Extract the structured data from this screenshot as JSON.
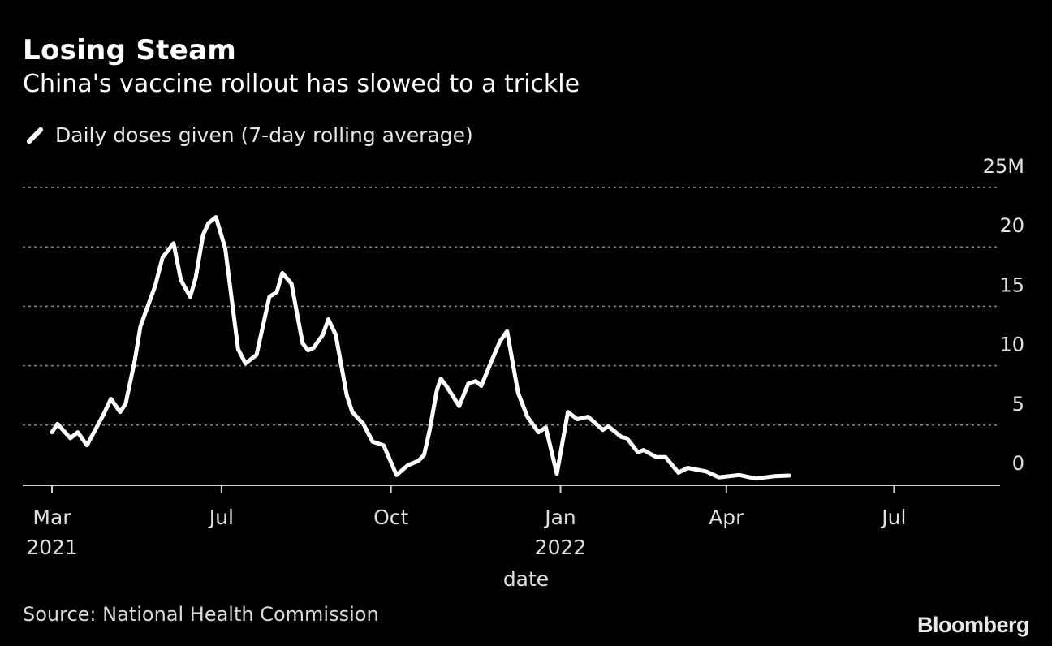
{
  "title": "Losing Steam",
  "subtitle": "China's vaccine rollout has slowed to a trickle",
  "source": "Source: National Health Commission",
  "logo": "Bloomberg",
  "colors": {
    "background": "#000000",
    "line": "#ffffff",
    "grid": "#888888"
  },
  "chart_data": {
    "type": "line",
    "title": "Losing Steam",
    "xlabel": "date",
    "ylabel": "",
    "x_units": "days since 2021-03-01",
    "ylim": [
      0,
      25
    ],
    "y_ticks": [
      {
        "value": 0,
        "label": "0"
      },
      {
        "value": 5,
        "label": "5"
      },
      {
        "value": 10,
        "label": "10"
      },
      {
        "value": 15,
        "label": "15"
      },
      {
        "value": 20,
        "label": "20"
      },
      {
        "value": 25,
        "label": "25M"
      }
    ],
    "x_ticks": [
      {
        "day": 30,
        "label": "Mar",
        "sublabel": "2021"
      },
      {
        "day": 122,
        "label": "Jul",
        "sublabel": ""
      },
      {
        "day": 214,
        "label": "Oct",
        "sublabel": ""
      },
      {
        "day": 306,
        "label": "Jan",
        "sublabel": "2022"
      },
      {
        "day": 396,
        "label": "Apr",
        "sublabel": ""
      },
      {
        "day": 487,
        "label": "Jul",
        "sublabel": ""
      }
    ],
    "grid": true,
    "legend_position": "top-left",
    "series": [
      {
        "name": "Daily doses given (7-day rolling average)",
        "x": [
          30,
          33,
          40,
          44,
          49,
          58,
          62,
          67,
          70,
          75,
          78,
          82,
          86,
          90,
          96,
          100,
          105,
          108,
          112,
          115,
          119,
          124,
          131,
          135,
          141,
          148,
          152,
          155,
          160,
          166,
          169,
          172,
          177,
          180,
          184,
          190,
          193,
          199,
          204,
          210,
          217,
          223,
          229,
          232,
          235,
          239,
          241,
          244,
          251,
          256,
          260,
          263,
          268,
          273,
          277,
          283,
          288,
          294,
          298,
          304,
          310,
          315,
          321,
          329,
          332,
          339,
          342,
          348,
          351,
          358,
          363,
          370,
          375,
          385,
          392,
          403,
          412,
          422,
          430
        ],
        "y": [
          4.4,
          5.1,
          3.9,
          4.4,
          3.3,
          5.9,
          7.2,
          6.1,
          6.8,
          10.5,
          13.3,
          15.0,
          16.7,
          19.1,
          20.3,
          17.2,
          15.8,
          17.4,
          21.0,
          22.0,
          22.5,
          19.9,
          11.4,
          10.2,
          10.9,
          15.8,
          16.2,
          17.8,
          16.9,
          11.9,
          11.3,
          11.5,
          12.6,
          13.9,
          12.6,
          7.5,
          6.1,
          5.1,
          3.6,
          3.3,
          0.8,
          1.6,
          2.0,
          2.5,
          4.6,
          8.0,
          8.9,
          8.3,
          6.6,
          8.5,
          8.7,
          8.3,
          10.2,
          12.0,
          12.9,
          7.7,
          5.7,
          4.4,
          4.8,
          0.9,
          6.1,
          5.5,
          5.7,
          4.6,
          4.9,
          4.0,
          3.9,
          2.7,
          2.9,
          2.3,
          2.3,
          1.0,
          1.4,
          1.1,
          0.6,
          0.8,
          0.5,
          0.7,
          0.75
        ]
      }
    ]
  }
}
